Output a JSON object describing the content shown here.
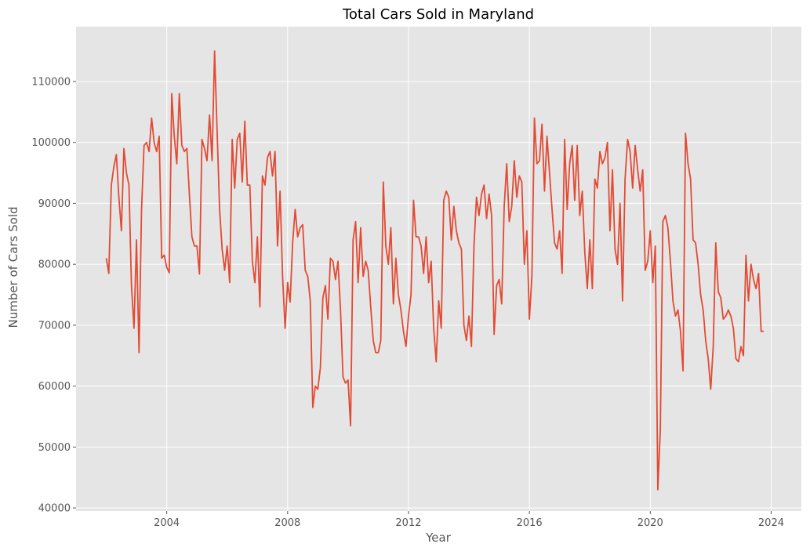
{
  "chart_data": {
    "type": "line",
    "title": "Total Cars Sold in Maryland",
    "xlabel": "Year",
    "ylabel": "Number of Cars Sold",
    "xlim": [
      2001.0,
      2025.0
    ],
    "ylim": [
      39500,
      119000
    ],
    "x_ticks": [
      2004,
      2008,
      2012,
      2016,
      2020,
      2024
    ],
    "y_ticks": [
      40000,
      50000,
      60000,
      70000,
      80000,
      90000,
      100000,
      110000
    ],
    "grid": true,
    "legend": "none",
    "colors": {
      "line": "#e24a33",
      "plot_bg": "#e5e5e5",
      "grid": "#ffffff"
    },
    "x_start": 2002.0,
    "x_step_months": 1,
    "series": [
      {
        "values": [
          81000,
          78500,
          93000,
          96000,
          98000,
          91000,
          85500,
          99000,
          95000,
          93000,
          76500,
          69500,
          84000,
          65500,
          89000,
          99500,
          100000,
          98500,
          104000,
          100000,
          98500,
          101000,
          81000,
          81500,
          79500,
          78600,
          108000,
          101000,
          96500,
          108000,
          99500,
          98500,
          99000,
          91500,
          84500,
          83000,
          83000,
          78400,
          100500,
          99000,
          97000,
          104500,
          97000,
          115000,
          102000,
          89000,
          82500,
          79000,
          83000,
          77000,
          100500,
          92500,
          100500,
          101500,
          93500,
          103500,
          93000,
          93000,
          80500,
          77000,
          84500,
          73000,
          94500,
          93000,
          97500,
          98500,
          94500,
          98500,
          83000,
          92000,
          78000,
          69500,
          77000,
          73800,
          83500,
          89000,
          84500,
          86000,
          86500,
          79000,
          78000,
          74000,
          56500,
          60000,
          59500,
          63000,
          74500,
          76500,
          71000,
          81000,
          80500,
          77500,
          80500,
          72500,
          61500,
          60500,
          61000,
          53500,
          84000,
          87000,
          77000,
          86000,
          78000,
          80500,
          79000,
          73000,
          67500,
          65500,
          65500,
          67500,
          93500,
          83000,
          80000,
          86000,
          73500,
          81000,
          75000,
          72500,
          69000,
          66500,
          71500,
          75000,
          90500,
          84500,
          84500,
          83000,
          78500,
          84500,
          77000,
          80500,
          69500,
          64000,
          74000,
          69500,
          90500,
          92000,
          91000,
          84000,
          89500,
          85500,
          83500,
          82500,
          70000,
          67500,
          71500,
          66500,
          83000,
          91000,
          88000,
          91500,
          93000,
          87500,
          91500,
          88000,
          68500,
          76500,
          77500,
          73500,
          89500,
          96500,
          87000,
          89500,
          97000,
          91000,
          94500,
          93500,
          80000,
          85500,
          71000,
          78000,
          104000,
          96500,
          97000,
          103000,
          92000,
          101000,
          95000,
          89000,
          83500,
          82500,
          85500,
          78500,
          100500,
          89000,
          96500,
          99500,
          90500,
          99500,
          88000,
          92000,
          82000,
          76000,
          84000,
          76000,
          94000,
          92500,
          98500,
          96500,
          97500,
          100000,
          85500,
          95500,
          82500,
          80000,
          90000,
          74000,
          94000,
          100500,
          98500,
          92500,
          99500,
          95500,
          92000,
          95500,
          79000,
          80500,
          85500,
          77000,
          83000,
          43000,
          53000,
          87000,
          88000,
          86000,
          80500,
          74000,
          71500,
          72500,
          69000,
          62500,
          101500,
          96500,
          94000,
          84000,
          83500,
          80000,
          75000,
          72500,
          67500,
          64500,
          59500,
          66500,
          83500,
          75500,
          74500,
          71000,
          71500,
          72500,
          71500,
          69500,
          64500,
          64000,
          66500,
          65000,
          81500,
          74000,
          80000,
          77500,
          76000,
          78500,
          69000,
          69000
        ]
      }
    ]
  }
}
